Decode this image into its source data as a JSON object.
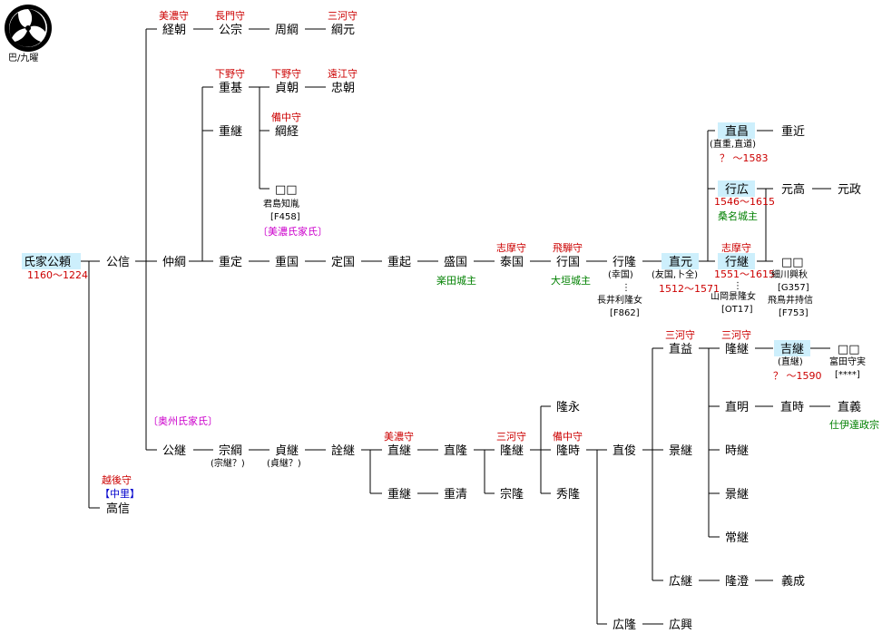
{
  "crest": {
    "label": "巴/九曜",
    "icon": "tomoe-crest-icon"
  },
  "people": {
    "p_ujiie_kimiyori": "氏家公頼",
    "p_kiminobu": "公信",
    "p_tsunetomo": "経朝",
    "p_kimimune": "公宗",
    "p_chikatsuna": "周綱",
    "p_tsunamoto": "綱元",
    "p_shigemoto": "重基",
    "p_sadatomo": "貞朝",
    "p_tadatomo": "忠朝",
    "p_shigetsugu": "重継",
    "p_tsunatsune": "綱経",
    "p_unknown1": "□□",
    "p_nakatsuna": "仲綱",
    "p_shigesada": "重定",
    "p_shigekuni": "重国",
    "p_sadakuni": "定国",
    "p_shigeoki": "重起",
    "p_morikuni": "盛国",
    "p_yasukuni": "泰国",
    "p_yukikuni": "行国",
    "p_yukitaka": "行隆",
    "p_naomoto": "直元",
    "p_naomasa": "直昌",
    "p_shigechika": "重近",
    "p_yukihiro": "行広",
    "p_mototaka": "元高",
    "p_motomasa": "元政",
    "p_yukitsugu": "行継",
    "p_unknown2": "□□",
    "p_naomasu": "直益",
    "p_takatsugu": "隆継",
    "p_yoshitsugu": "吉継",
    "p_unknown3": "□□",
    "p_naoaki": "直明",
    "p_naotoki": "直時",
    "p_naoyoshi": "直義",
    "p_naotoshi": "直俊",
    "p_kagetsugu": "景継",
    "p_tokitsugu": "時継",
    "p_kagetsugu2": "景継",
    "p_tsunetsugu": "常継",
    "p_hirotsugu": "広継",
    "p_takasumi": "隆澄",
    "p_yoshinari": "義成",
    "p_takanaga": "隆永",
    "p_kimitsugu": "公継",
    "p_munetsuna": "宗綱",
    "p_sadatsugu": "貞継",
    "p_akitsugu": "詮継",
    "p_naotsugu": "直継",
    "p_naotaka": "直隆",
    "p_takatsugu2": "隆継",
    "p_takatoki": "隆時",
    "p_shigetsugu2": "重継",
    "p_shigekiyo": "重清",
    "p_munetaka": "宗隆",
    "p_hidetaka": "秀隆",
    "p_hirotaka": "広隆",
    "p_hirooki": "広興",
    "p_takanobu": "高信"
  },
  "titles": {
    "t_tsunetomo": "美濃守",
    "t_kimimune": "長門守",
    "t_tsunamoto": "三河守",
    "t_shigemoto": "下野守",
    "t_sadatomo": "下野守",
    "t_tadatomo": "遠江守",
    "t_tsunatsune": "備中守",
    "t_yasukuni": "志摩守",
    "t_yukikuni": "飛騨守",
    "t_yukitsugu": "志摩守",
    "t_naomasu": "三河守",
    "t_takatsugu": "三河守",
    "t_naotsugu": "美濃守",
    "t_takatsugu2": "三河守",
    "t_takatoki": "備中守",
    "t_takanobu": "越後守"
  },
  "notes": {
    "kimiyori_dates": "1160～1224",
    "unknown1_note1": "君島知胤",
    "unknown1_note2": "[F458]",
    "mino_clan": "〔美濃氏家氏〕",
    "morikuni_castle": "楽田城主",
    "yukikuni_castle": "大垣城主",
    "yukitaka_alias": "(幸国)",
    "yukitaka_wife": "長井利隆女",
    "yukitaka_ref": "[F862]",
    "naomoto_alias": "(友国,卜全)",
    "naomoto_dates": "1512～1571",
    "naomasa_alias": "(直重,直道)",
    "naomasa_dates": "？ ～1583",
    "yukihiro_dates": "1546～1615",
    "yukihiro_castle": "桑名城主",
    "yukitsugu_dates": "1551～1615",
    "yukitsugu_wife": "山岡景隆女",
    "yukitsugu_ref": "[OT17]",
    "unknown2_note1": "細川興秋",
    "unknown2_note2": "[G357]",
    "unknown2_note3": "飛鳥井持信",
    "unknown2_note4": "[F753]",
    "yoshitsugu_alias": "(直継)",
    "yoshitsugu_dates": "？ ～1590",
    "unknown3_note1": "富田守実",
    "unknown3_note2": "[****]",
    "naoyoshi_note": "仕伊達政宗",
    "oshu_clan": "〔奥州氏家氏〕",
    "munetsuna_alias": "(宗継？)",
    "sadatsugu_alias": "(貞継？)",
    "takanobu_place": "【中里】"
  }
}
